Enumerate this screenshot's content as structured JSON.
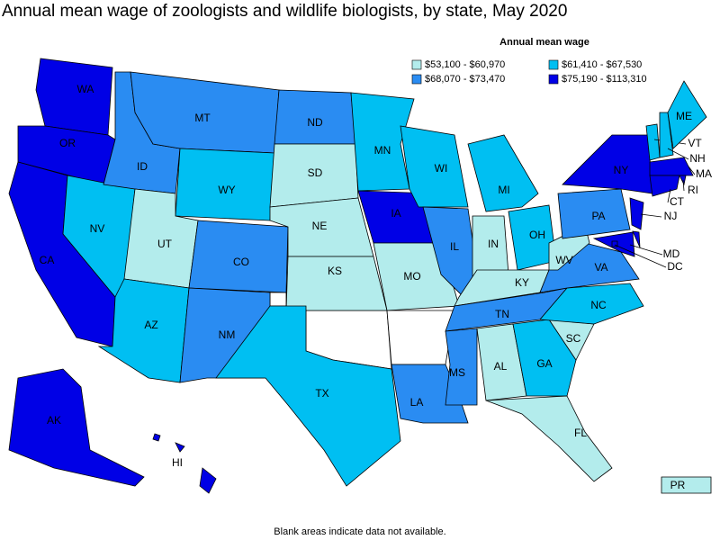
{
  "title": "Annual mean wage of zoologists and wildlife biologists, by state, May 2020",
  "legend": {
    "title": "Annual mean wage",
    "entries": [
      {
        "label": "$53,100 - $60,970",
        "color": "#b3ecec"
      },
      {
        "label": "$61,410 - $67,530",
        "color": "#00bff2"
      },
      {
        "label": "$68,070 - $73,470",
        "color": "#2a8cf2"
      },
      {
        "label": "$75,190 - $113,310",
        "color": "#0000e6"
      }
    ]
  },
  "states": [
    {
      "label": "WA",
      "class": 3
    },
    {
      "label": "OR",
      "class": 3
    },
    {
      "label": "CA",
      "class": 3
    },
    {
      "label": "NV",
      "class": 1
    },
    {
      "label": "ID",
      "class": 2
    },
    {
      "label": "MT",
      "class": 2
    },
    {
      "label": "WY",
      "class": 1
    },
    {
      "label": "UT",
      "class": 0
    },
    {
      "label": "AZ",
      "class": 1
    },
    {
      "label": "CO",
      "class": 2
    },
    {
      "label": "NM",
      "class": 2
    },
    {
      "label": "ND",
      "class": 2
    },
    {
      "label": "SD",
      "class": 0
    },
    {
      "label": "NE",
      "class": 0
    },
    {
      "label": "KS",
      "class": 0
    },
    {
      "label": "TX",
      "class": 1
    },
    {
      "label": "MN",
      "class": 1
    },
    {
      "label": "IA",
      "class": 3
    },
    {
      "label": "MO",
      "class": 0
    },
    {
      "label": "LA",
      "class": 2
    },
    {
      "label": "WI",
      "class": 1
    },
    {
      "label": "IL",
      "class": 2
    },
    {
      "label": "MI",
      "class": 1
    },
    {
      "label": "IN",
      "class": 0
    },
    {
      "label": "OH",
      "class": 1
    },
    {
      "label": "KY",
      "class": 0
    },
    {
      "label": "TN",
      "class": 2
    },
    {
      "label": "MS",
      "class": 2
    },
    {
      "label": "AL",
      "class": 0
    },
    {
      "label": "GA",
      "class": 1
    },
    {
      "label": "FL",
      "class": 0
    },
    {
      "label": "SC",
      "class": 0
    },
    {
      "label": "NC",
      "class": 1
    },
    {
      "label": "VA",
      "class": 2
    },
    {
      "label": "WV",
      "class": 0
    },
    {
      "label": "PA",
      "class": 2
    },
    {
      "label": "NY",
      "class": 3
    },
    {
      "label": "VT",
      "class": 1
    },
    {
      "label": "NH",
      "class": 1
    },
    {
      "label": "ME",
      "class": 1
    },
    {
      "label": "MA",
      "class": 3
    },
    {
      "label": "RI",
      "class": 3
    },
    {
      "label": "CT",
      "class": 3
    },
    {
      "label": "NJ",
      "class": 3
    },
    {
      "class": 3
    },
    {
      "label": "MD",
      "class": 3
    },
    {
      "label": "DC",
      "class": 3
    },
    {
      "label": "AK",
      "class": 3
    },
    {
      "label": "HI",
      "class": 3
    },
    {
      "label": "PR",
      "class": 0
    }
  ],
  "footnote": "Blank areas indicate data not available."
}
